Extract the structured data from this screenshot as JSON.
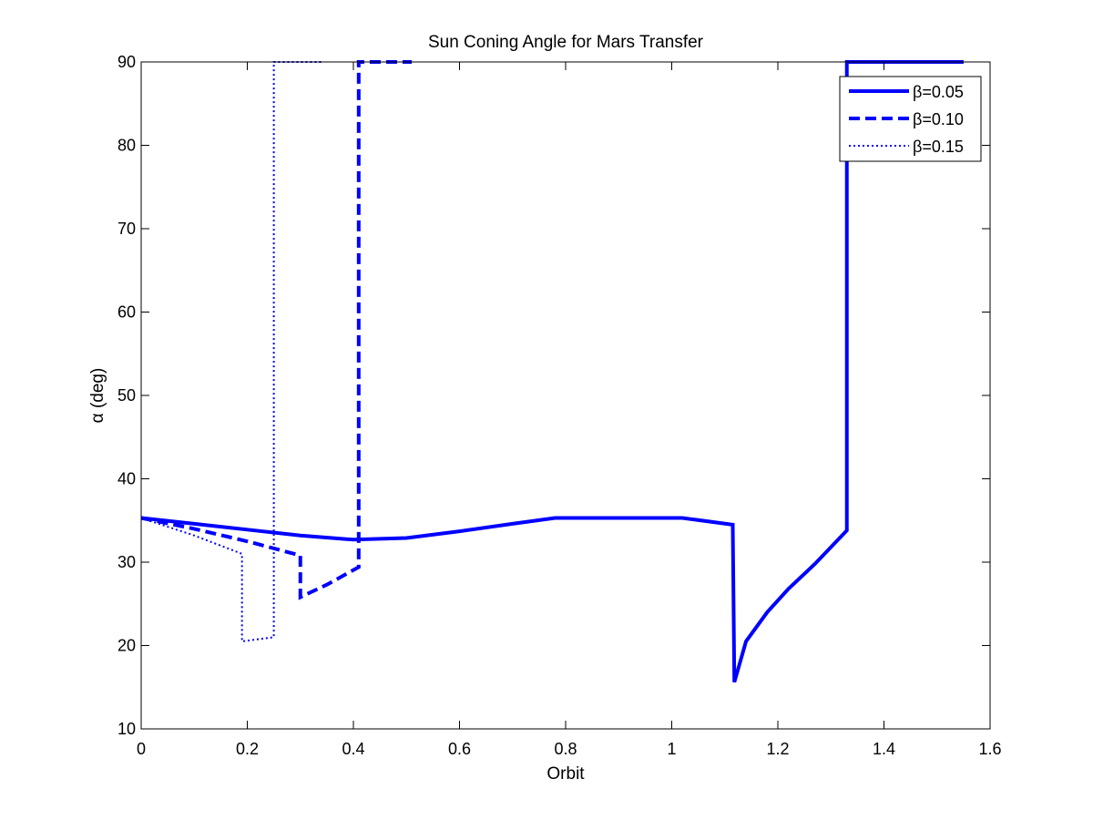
{
  "chart_data": {
    "type": "line",
    "title": "Sun Coning Angle for Mars Transfer",
    "xlabel": "Orbit",
    "ylabel": "α (deg)",
    "xlim": [
      0,
      1.6
    ],
    "ylim": [
      10,
      90
    ],
    "xticks": [
      0,
      0.2,
      0.4,
      0.6,
      0.8,
      1,
      1.2,
      1.4,
      1.6
    ],
    "xtick_labels": [
      "0",
      "0.2",
      "0.4",
      "0.6",
      "0.8",
      "1",
      "1.2",
      "1.4",
      "1.6"
    ],
    "yticks": [
      10,
      20,
      30,
      40,
      50,
      60,
      70,
      80,
      90
    ],
    "ytick_labels": [
      "10",
      "20",
      "30",
      "40",
      "50",
      "60",
      "70",
      "80",
      "90"
    ],
    "grid": false,
    "legend_position": "top-right",
    "colors": {
      "series": "#0000ff",
      "axes": "#000000",
      "background": "#ffffff"
    },
    "series": [
      {
        "name": "β=0.05",
        "style": "solid",
        "x": [
          0,
          0.1,
          0.2,
          0.3,
          0.4,
          0.5,
          0.6,
          0.7,
          0.78,
          0.9,
          1.02,
          1.115,
          1.118,
          1.14,
          1.18,
          1.22,
          1.27,
          1.33,
          1.33,
          1.55
        ],
        "y": [
          35.3,
          34.6,
          33.9,
          33.2,
          32.7,
          32.9,
          33.7,
          34.6,
          35.3,
          35.3,
          35.3,
          34.5,
          15.6,
          20.5,
          24.0,
          26.8,
          29.8,
          33.8,
          90,
          90
        ]
      },
      {
        "name": "β=0.10",
        "style": "dashed",
        "x": [
          0,
          0.1,
          0.2,
          0.3,
          0.3,
          0.35,
          0.41,
          0.41,
          0.51
        ],
        "y": [
          35.3,
          34.0,
          32.5,
          30.8,
          25.8,
          27.3,
          29.4,
          90,
          90
        ]
      },
      {
        "name": "β=0.15",
        "style": "dotted",
        "x": [
          0,
          0.1,
          0.19,
          0.19,
          0.25,
          0.25,
          0.34
        ],
        "y": [
          35.3,
          33.2,
          31.0,
          20.5,
          21.0,
          90,
          90
        ]
      }
    ]
  }
}
